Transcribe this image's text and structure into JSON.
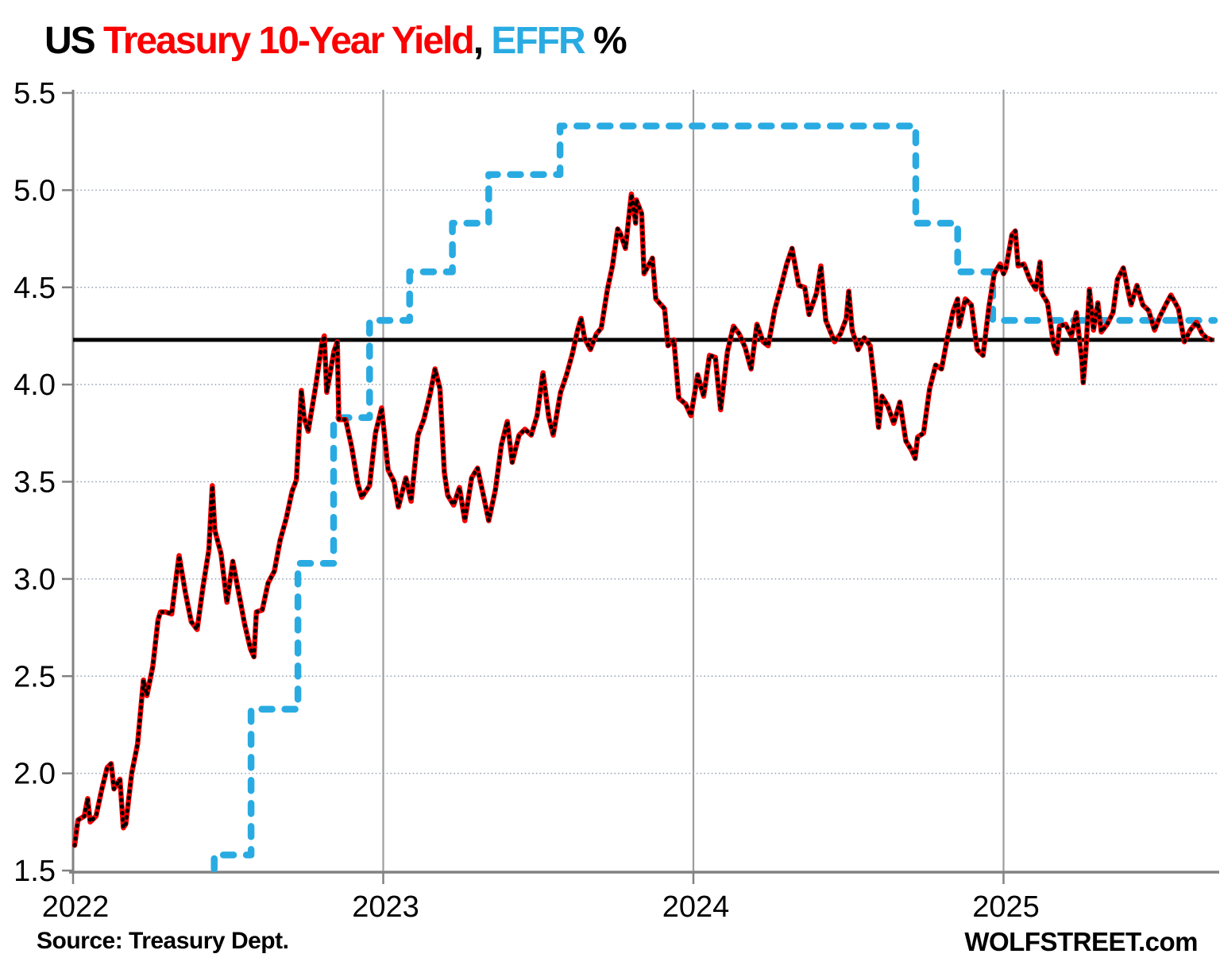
{
  "title": {
    "full": "US Treasury 10-Year Yield, EFFR %",
    "segments": [
      {
        "text": "US ",
        "color": "#000000"
      },
      {
        "text": "Treasury 10-Year Yield",
        "color": "#fb0000"
      },
      {
        "text": ", ",
        "color": "#000000"
      },
      {
        "text": "EFFR",
        "color": "#29abe2"
      },
      {
        "text": " %",
        "color": "#000000"
      }
    ]
  },
  "footer": {
    "source": "Source: Treasury Dept.",
    "brand": "WOLFSTREET.com"
  },
  "chart_data": {
    "type": "line",
    "title": "US Treasury 10-Year Yield, EFFR %",
    "xlabel": "",
    "ylabel": "",
    "x_unit": "fractional years since Jan 1 2022",
    "xlim": [
      0,
      3.68
    ],
    "ylim": [
      1.5,
      5.5
    ],
    "grid": {
      "horizontal": "dotted",
      "vertical_years_solid": [
        1,
        2,
        3
      ]
    },
    "legend": "none (series identified by title colors)",
    "x_ticks": [
      {
        "t": 0,
        "label": "2022"
      },
      {
        "t": 1,
        "label": "2023"
      },
      {
        "t": 2,
        "label": "2024"
      },
      {
        "t": 3,
        "label": "2025"
      }
    ],
    "y_ticks": [
      {
        "v": 1.5,
        "label": "1.5"
      },
      {
        "v": 2.0,
        "label": "2.0"
      },
      {
        "v": 2.5,
        "label": "2.5"
      },
      {
        "v": 3.0,
        "label": "3.0"
      },
      {
        "v": 3.5,
        "label": "3.5"
      },
      {
        "v": 4.0,
        "label": "4.0"
      },
      {
        "v": 4.5,
        "label": "4.5"
      },
      {
        "v": 5.0,
        "label": "5.0"
      },
      {
        "v": 5.5,
        "label": "5.5"
      }
    ],
    "reference_line": {
      "value": 4.23,
      "color": "#000000"
    },
    "colors": {
      "yield_line": "#f50000",
      "yield_markers": "#000000",
      "effr_line": "#29abe2",
      "grid_dotted": "#98a2b4",
      "axis": "#828282",
      "year_grid": "#9d9d9d"
    },
    "series": [
      {
        "name": "US Treasury 10-Year Yield",
        "style": "solid red line with black daily dot markers",
        "points": [
          [
            0.005,
            1.63
          ],
          [
            0.016,
            1.76
          ],
          [
            0.036,
            1.78
          ],
          [
            0.047,
            1.87
          ],
          [
            0.055,
            1.75
          ],
          [
            0.074,
            1.78
          ],
          [
            0.093,
            1.92
          ],
          [
            0.11,
            2.03
          ],
          [
            0.123,
            2.05
          ],
          [
            0.132,
            1.92
          ],
          [
            0.151,
            1.97
          ],
          [
            0.162,
            1.72
          ],
          [
            0.17,
            1.74
          ],
          [
            0.189,
            2.0
          ],
          [
            0.208,
            2.15
          ],
          [
            0.227,
            2.48
          ],
          [
            0.238,
            2.4
          ],
          [
            0.257,
            2.55
          ],
          [
            0.274,
            2.79
          ],
          [
            0.282,
            2.83
          ],
          [
            0.298,
            2.83
          ],
          [
            0.318,
            2.82
          ],
          [
            0.331,
            2.99
          ],
          [
            0.342,
            3.12
          ],
          [
            0.362,
            2.93
          ],
          [
            0.381,
            2.78
          ],
          [
            0.4,
            2.74
          ],
          [
            0.419,
            2.96
          ],
          [
            0.438,
            3.15
          ],
          [
            0.449,
            3.48
          ],
          [
            0.457,
            3.25
          ],
          [
            0.477,
            3.13
          ],
          [
            0.496,
            2.88
          ],
          [
            0.515,
            3.09
          ],
          [
            0.534,
            2.93
          ],
          [
            0.553,
            2.77
          ],
          [
            0.572,
            2.64
          ],
          [
            0.583,
            2.6
          ],
          [
            0.591,
            2.83
          ],
          [
            0.61,
            2.84
          ],
          [
            0.629,
            2.98
          ],
          [
            0.649,
            3.04
          ],
          [
            0.668,
            3.2
          ],
          [
            0.687,
            3.31
          ],
          [
            0.706,
            3.45
          ],
          [
            0.72,
            3.51
          ],
          [
            0.736,
            3.97
          ],
          [
            0.745,
            3.83
          ],
          [
            0.758,
            3.76
          ],
          [
            0.783,
            4.0
          ],
          [
            0.802,
            4.21
          ],
          [
            0.81,
            4.25
          ],
          [
            0.818,
            3.96
          ],
          [
            0.841,
            4.17
          ],
          [
            0.852,
            4.22
          ],
          [
            0.857,
            3.82
          ],
          [
            0.879,
            3.82
          ],
          [
            0.898,
            3.68
          ],
          [
            0.918,
            3.49
          ],
          [
            0.931,
            3.42
          ],
          [
            0.956,
            3.48
          ],
          [
            0.975,
            3.75
          ],
          [
            0.995,
            3.88
          ],
          [
            1.016,
            3.56
          ],
          [
            1.035,
            3.5
          ],
          [
            1.049,
            3.37
          ],
          [
            1.073,
            3.52
          ],
          [
            1.09,
            3.4
          ],
          [
            1.112,
            3.74
          ],
          [
            1.131,
            3.82
          ],
          [
            1.151,
            3.95
          ],
          [
            1.167,
            4.08
          ],
          [
            1.183,
            3.98
          ],
          [
            1.197,
            3.55
          ],
          [
            1.208,
            3.43
          ],
          [
            1.227,
            3.38
          ],
          [
            1.246,
            3.47
          ],
          [
            1.263,
            3.3
          ],
          [
            1.285,
            3.52
          ],
          [
            1.304,
            3.57
          ],
          [
            1.323,
            3.43
          ],
          [
            1.34,
            3.3
          ],
          [
            1.362,
            3.46
          ],
          [
            1.381,
            3.69
          ],
          [
            1.4,
            3.81
          ],
          [
            1.416,
            3.6
          ],
          [
            1.438,
            3.74
          ],
          [
            1.457,
            3.77
          ],
          [
            1.477,
            3.74
          ],
          [
            1.496,
            3.84
          ],
          [
            1.515,
            4.06
          ],
          [
            1.534,
            3.83
          ],
          [
            1.548,
            3.74
          ],
          [
            1.572,
            3.96
          ],
          [
            1.591,
            4.05
          ],
          [
            1.61,
            4.16
          ],
          [
            1.627,
            4.28
          ],
          [
            1.638,
            4.34
          ],
          [
            1.649,
            4.24
          ],
          [
            1.668,
            4.18
          ],
          [
            1.687,
            4.26
          ],
          [
            1.703,
            4.29
          ],
          [
            1.723,
            4.49
          ],
          [
            1.739,
            4.61
          ],
          [
            1.756,
            4.8
          ],
          [
            1.764,
            4.78
          ],
          [
            1.781,
            4.7
          ],
          [
            1.8,
            4.98
          ],
          [
            1.814,
            4.83
          ],
          [
            1.816,
            4.95
          ],
          [
            1.833,
            4.88
          ],
          [
            1.841,
            4.57
          ],
          [
            1.868,
            4.65
          ],
          [
            1.879,
            4.44
          ],
          [
            1.907,
            4.39
          ],
          [
            1.918,
            4.2
          ],
          [
            1.937,
            4.23
          ],
          [
            1.953,
            3.93
          ],
          [
            1.975,
            3.9
          ],
          [
            1.992,
            3.84
          ],
          [
            2.014,
            4.05
          ],
          [
            2.033,
            3.94
          ],
          [
            2.052,
            4.15
          ],
          [
            2.071,
            4.14
          ],
          [
            2.088,
            3.87
          ],
          [
            2.11,
            4.17
          ],
          [
            2.129,
            4.3
          ],
          [
            2.148,
            4.26
          ],
          [
            2.167,
            4.19
          ],
          [
            2.186,
            4.08
          ],
          [
            2.205,
            4.31
          ],
          [
            2.225,
            4.22
          ],
          [
            2.241,
            4.2
          ],
          [
            2.263,
            4.39
          ],
          [
            2.282,
            4.5
          ],
          [
            2.301,
            4.62
          ],
          [
            2.318,
            4.7
          ],
          [
            2.34,
            4.51
          ],
          [
            2.359,
            4.5
          ],
          [
            2.373,
            4.36
          ],
          [
            2.397,
            4.47
          ],
          [
            2.411,
            4.61
          ],
          [
            2.427,
            4.33
          ],
          [
            2.455,
            4.22
          ],
          [
            2.474,
            4.26
          ],
          [
            2.493,
            4.34
          ],
          [
            2.501,
            4.48
          ],
          [
            2.512,
            4.28
          ],
          [
            2.531,
            4.18
          ],
          [
            2.551,
            4.24
          ],
          [
            2.57,
            4.2
          ],
          [
            2.586,
            3.98
          ],
          [
            2.597,
            3.78
          ],
          [
            2.608,
            3.94
          ],
          [
            2.627,
            3.89
          ],
          [
            2.646,
            3.8
          ],
          [
            2.666,
            3.91
          ],
          [
            2.685,
            3.71
          ],
          [
            2.704,
            3.66
          ],
          [
            2.715,
            3.62
          ],
          [
            2.723,
            3.73
          ],
          [
            2.742,
            3.75
          ],
          [
            2.762,
            3.98
          ],
          [
            2.781,
            4.1
          ],
          [
            2.8,
            4.08
          ],
          [
            2.819,
            4.24
          ],
          [
            2.838,
            4.38
          ],
          [
            2.852,
            4.44
          ],
          [
            2.857,
            4.3
          ],
          [
            2.877,
            4.44
          ],
          [
            2.896,
            4.41
          ],
          [
            2.915,
            4.18
          ],
          [
            2.934,
            4.15
          ],
          [
            2.953,
            4.4
          ],
          [
            2.97,
            4.57
          ],
          [
            2.989,
            4.62
          ],
          [
            3.0,
            4.57
          ],
          [
            3.008,
            4.6
          ],
          [
            3.027,
            4.77
          ],
          [
            3.038,
            4.79
          ],
          [
            3.047,
            4.61
          ],
          [
            3.066,
            4.62
          ],
          [
            3.085,
            4.54
          ],
          [
            3.104,
            4.49
          ],
          [
            3.118,
            4.63
          ],
          [
            3.123,
            4.47
          ],
          [
            3.142,
            4.42
          ],
          [
            3.161,
            4.21
          ],
          [
            3.172,
            4.16
          ],
          [
            3.18,
            4.3
          ],
          [
            3.2,
            4.31
          ],
          [
            3.219,
            4.25
          ],
          [
            3.235,
            4.37
          ],
          [
            3.252,
            4.13
          ],
          [
            3.257,
            4.01
          ],
          [
            3.265,
            4.16
          ],
          [
            3.277,
            4.49
          ],
          [
            3.29,
            4.28
          ],
          [
            3.304,
            4.42
          ],
          [
            3.315,
            4.27
          ],
          [
            3.334,
            4.31
          ],
          [
            3.353,
            4.37
          ],
          [
            3.367,
            4.54
          ],
          [
            3.386,
            4.6
          ],
          [
            3.411,
            4.41
          ],
          [
            3.43,
            4.51
          ],
          [
            3.449,
            4.41
          ],
          [
            3.468,
            4.38
          ],
          [
            3.487,
            4.28
          ],
          [
            3.504,
            4.35
          ],
          [
            3.526,
            4.42
          ],
          [
            3.54,
            4.46
          ],
          [
            3.564,
            4.39
          ],
          [
            3.583,
            4.22
          ],
          [
            3.602,
            4.28
          ],
          [
            3.622,
            4.32
          ],
          [
            3.641,
            4.26
          ],
          [
            3.655,
            4.24
          ],
          [
            3.67,
            4.23
          ]
        ]
      },
      {
        "name": "EFFR",
        "style": "thick dashed step line",
        "enters_from_below_at": 0.455,
        "extends_to": 3.68,
        "steps": [
          [
            0.455,
            1.58
          ],
          [
            0.574,
            2.33
          ],
          [
            0.725,
            3.08
          ],
          [
            0.84,
            3.83
          ],
          [
            0.956,
            4.33
          ],
          [
            1.085,
            4.58
          ],
          [
            1.223,
            4.83
          ],
          [
            1.34,
            5.08
          ],
          [
            1.57,
            5.33
          ],
          [
            2.717,
            4.83
          ],
          [
            2.852,
            4.58
          ],
          [
            2.965,
            4.33
          ]
        ]
      }
    ]
  }
}
